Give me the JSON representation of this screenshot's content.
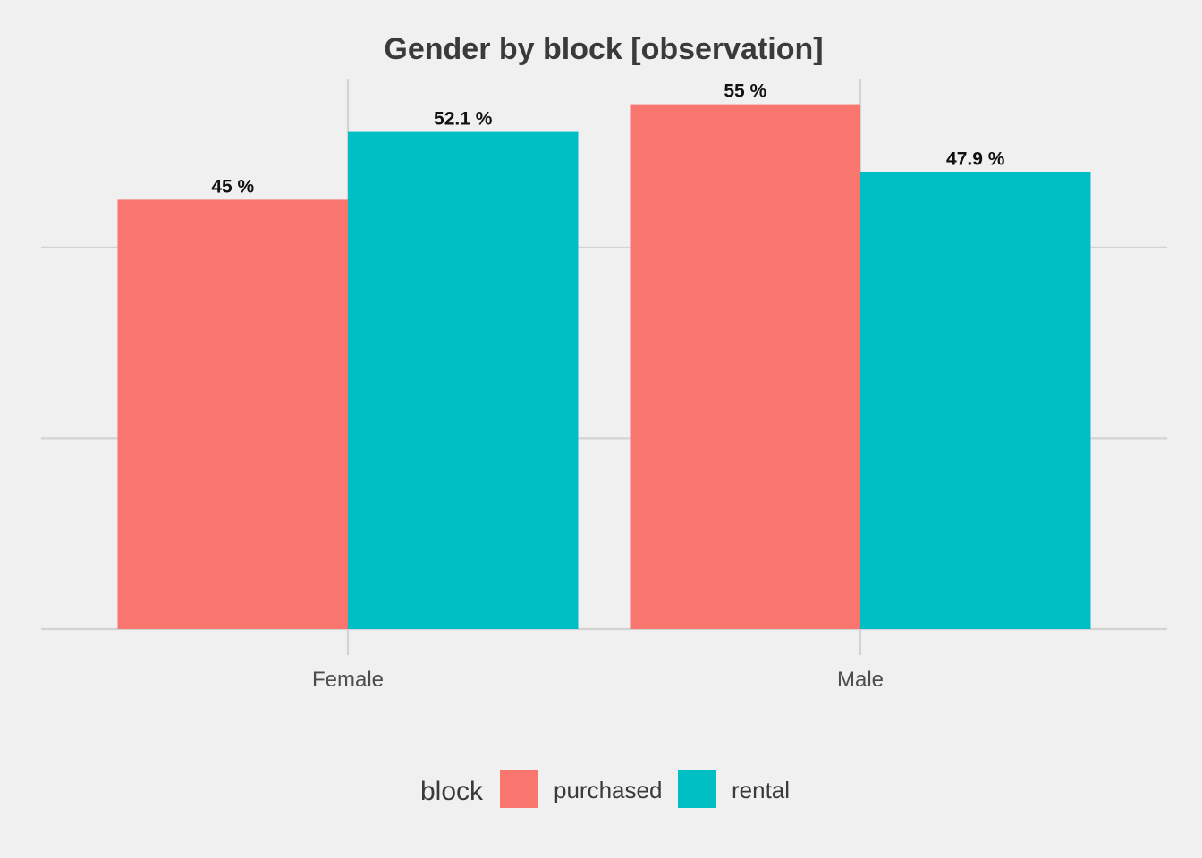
{
  "chart_data": {
    "type": "bar",
    "title": "Gender by block   [observation]",
    "categories": [
      "Female",
      "Male"
    ],
    "series": [
      {
        "name": "purchased",
        "values": [
          45.0,
          55.0
        ],
        "labels": [
          "45 %",
          "55 %"
        ],
        "color": "#F8766D"
      },
      {
        "name": "rental",
        "values": [
          52.1,
          47.9
        ],
        "labels": [
          "52.1 %",
          "47.9 %"
        ],
        "color": "#00BFC4"
      }
    ],
    "ylim": [
      0,
      58.5
    ],
    "y_gridlines": [
      0,
      20,
      40
    ],
    "legend": {
      "title": "block",
      "position": "bottom"
    },
    "grid": true,
    "background": "#F0F0F0",
    "grid_color": "#D3D3D3"
  }
}
